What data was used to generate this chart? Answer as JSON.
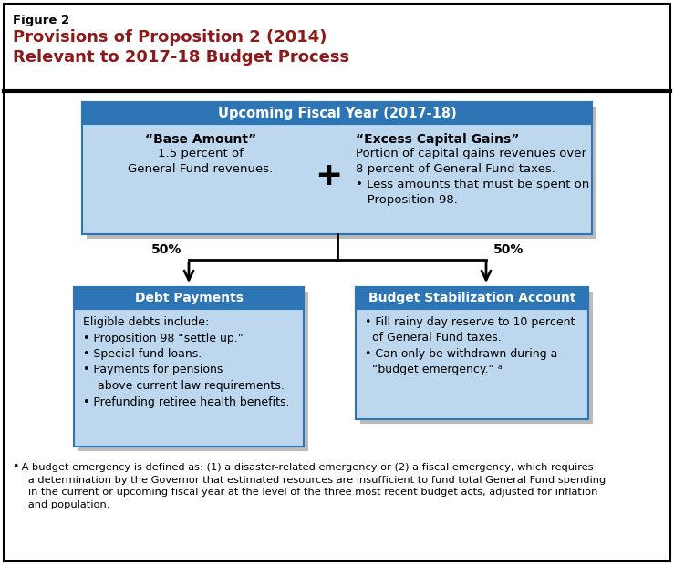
{
  "figure_label": "Figure 2",
  "title_line1": "Provisions of Proposition 2 (2014)",
  "title_line2": "Relevant to 2017-18 Budget Process",
  "title_color": "#8B1A1A",
  "figure_label_color": "#000000",
  "bg_color": "#FFFFFF",
  "outer_border_color": "#000000",
  "header_bg": "#2E75B6",
  "header_text_color": "#FFFFFF",
  "box_fill": "#BDD7EE",
  "box_border": "#2E75B6",
  "shadow_color": "#BBBBBB",
  "top_header_text": "Upcoming Fiscal Year (2017-18)",
  "base_amount_bold": "“Base Amount”",
  "base_amount_body": "1.5 percent of\nGeneral Fund revenues.",
  "plus_symbol": "+",
  "excess_cg_bold": "“Excess Capital Gains”",
  "excess_cg_body": "Portion of capital gains revenues over\n8 percent of General Fund taxes.\n• Less amounts that must be spent on\n   Proposition 98.",
  "left_pct": "50%",
  "right_pct": "50%",
  "debt_header": "Debt Payments",
  "debt_body": "Eligible debts include:\n• Proposition 98 “settle up.”\n• Special fund loans.\n• Payments for pensions\n    above current law requirements.\n• Prefunding retiree health benefits.",
  "bsa_header": "Budget Stabilization Account",
  "bsa_body": "• Fill rainy day reserve to 10 percent\n  of General Fund taxes.\n• Can only be withdrawn during a\n  “budget emergency.” ᵃ",
  "footnote_super": "ᵃ",
  "footnote_body": " A budget emergency is defined as: (1) a disaster-related emergency or (2) a fiscal emergency, which requires\n   a determination by the Governor that estimated resources are insufficient to fund total General Fund spending\n   in the current or upcoming fiscal year at the level of the three most recent budget acts, adjusted for inflation\n   and population."
}
